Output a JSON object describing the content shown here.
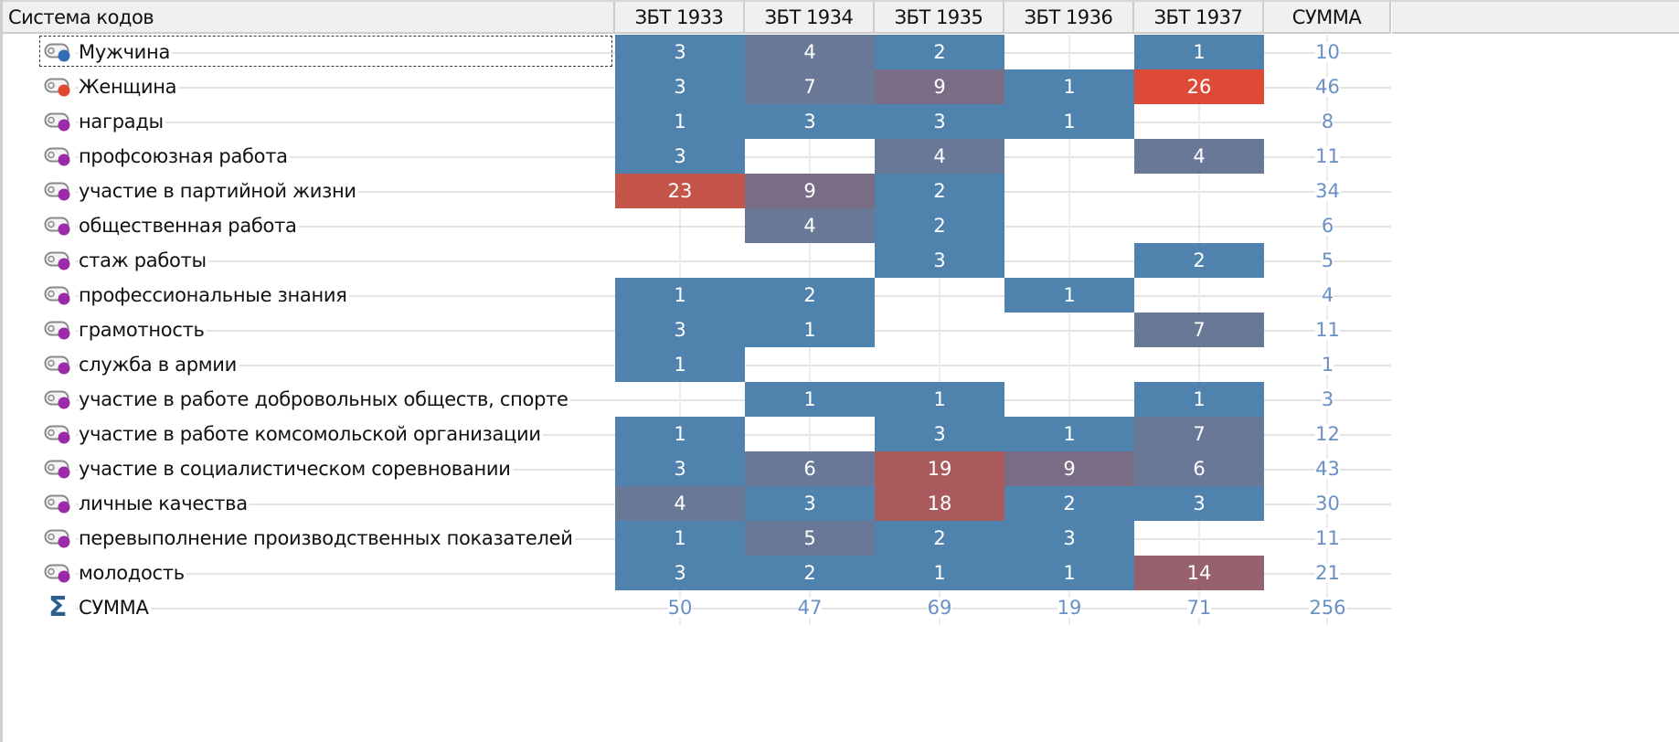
{
  "header": {
    "first_column": "Система кодов",
    "columns": [
      "ЗБТ 1933",
      "ЗБТ 1934",
      "ЗБТ 1935",
      "ЗБТ 1936",
      "ЗБТ 1937"
    ],
    "sum_column": "СУММА"
  },
  "colors": {
    "cell_low": "#4f83ae",
    "cell_mid": "#687896",
    "cell_midhigh": "#7a6c84",
    "cell_high": "#a85a5c",
    "cell_max": "#dd4a35",
    "cell_23": "#c5554a",
    "cell_14": "#96606c",
    "sum_text": "#6a8fc4",
    "code_icon_male": "#2f6db5",
    "code_icon_female": "#e0492f",
    "code_icon_default": "#9b2ba8"
  },
  "rows": [
    {
      "label": "Мужчина",
      "icon": "code-icon",
      "icon_color": "#2f6db5",
      "values": [
        3,
        4,
        2,
        null,
        1
      ],
      "sum": 10,
      "focused": true
    },
    {
      "label": "Женщина",
      "icon": "code-icon",
      "icon_color": "#e0492f",
      "values": [
        3,
        7,
        9,
        1,
        26
      ],
      "sum": 46
    },
    {
      "label": "награды",
      "icon": "code-icon",
      "icon_color": "#9b2ba8",
      "values": [
        1,
        3,
        3,
        1,
        null
      ],
      "sum": 8
    },
    {
      "label": "профсоюзная работа",
      "icon": "code-icon",
      "icon_color": "#9b2ba8",
      "values": [
        3,
        null,
        4,
        null,
        4
      ],
      "sum": 11
    },
    {
      "label": "участие в партийной жизни",
      "icon": "code-icon",
      "icon_color": "#9b2ba8",
      "values": [
        23,
        9,
        2,
        null,
        null
      ],
      "sum": 34
    },
    {
      "label": "общественная работа",
      "icon": "code-icon",
      "icon_color": "#9b2ba8",
      "values": [
        null,
        4,
        2,
        null,
        null
      ],
      "sum": 6
    },
    {
      "label": "стаж работы",
      "icon": "code-icon",
      "icon_color": "#9b2ba8",
      "values": [
        null,
        null,
        3,
        null,
        2
      ],
      "sum": 5
    },
    {
      "label": "профессиональные знания",
      "icon": "code-icon",
      "icon_color": "#9b2ba8",
      "values": [
        1,
        2,
        null,
        1,
        null
      ],
      "sum": 4
    },
    {
      "label": "грамотность",
      "icon": "code-icon",
      "icon_color": "#9b2ba8",
      "values": [
        3,
        1,
        null,
        null,
        7
      ],
      "sum": 11
    },
    {
      "label": "служба в армии",
      "icon": "code-icon",
      "icon_color": "#9b2ba8",
      "values": [
        1,
        null,
        null,
        null,
        null
      ],
      "sum": 1
    },
    {
      "label": "участие в работе добровольных обществ, спорте",
      "icon": "code-icon",
      "icon_color": "#9b2ba8",
      "values": [
        null,
        1,
        1,
        null,
        1
      ],
      "sum": 3
    },
    {
      "label": "участие в работе комсомольской организации",
      "icon": "code-icon",
      "icon_color": "#9b2ba8",
      "values": [
        1,
        null,
        3,
        1,
        7
      ],
      "sum": 12
    },
    {
      "label": "участие в социалистическом соревновании",
      "icon": "code-icon",
      "icon_color": "#9b2ba8",
      "values": [
        3,
        6,
        19,
        9,
        6
      ],
      "sum": 43
    },
    {
      "label": "личные качества",
      "icon": "code-icon",
      "icon_color": "#9b2ba8",
      "values": [
        4,
        3,
        18,
        2,
        3
      ],
      "sum": 30
    },
    {
      "label": "перевыполнение производственных показателей",
      "icon": "code-icon",
      "icon_color": "#9b2ba8",
      "values": [
        1,
        5,
        2,
        3,
        null
      ],
      "sum": 11
    },
    {
      "label": "молодость",
      "icon": "code-icon",
      "icon_color": "#9b2ba8",
      "values": [
        3,
        2,
        1,
        1,
        14
      ],
      "sum": 21
    }
  ],
  "totals": {
    "label": "СУММА",
    "icon": "sigma-icon",
    "values": [
      50,
      47,
      69,
      19,
      71
    ],
    "sum": 256
  },
  "chart_data": {
    "type": "heatmap",
    "title": "",
    "xlabel": "",
    "ylabel": "Система кодов",
    "categories": [
      "ЗБТ 1933",
      "ЗБТ 1934",
      "ЗБТ 1935",
      "ЗБТ 1936",
      "ЗБТ 1937"
    ],
    "rows": [
      "Мужчина",
      "Женщина",
      "награды",
      "профсоюзная работа",
      "участие в партийной жизни",
      "общественная работа",
      "стаж работы",
      "профессиональные знания",
      "грамотность",
      "служба в армии",
      "участие в работе добровольных обществ, спорте",
      "участие в работе комсомольской организации",
      "участие в социалистическом соревновании",
      "личные качества",
      "перевыполнение производственных показателей",
      "молодость"
    ],
    "values": [
      [
        3,
        4,
        2,
        null,
        1
      ],
      [
        3,
        7,
        9,
        1,
        26
      ],
      [
        1,
        3,
        3,
        1,
        null
      ],
      [
        3,
        null,
        4,
        null,
        4
      ],
      [
        23,
        9,
        2,
        null,
        null
      ],
      [
        null,
        4,
        2,
        null,
        null
      ],
      [
        null,
        null,
        3,
        null,
        2
      ],
      [
        1,
        2,
        null,
        1,
        null
      ],
      [
        3,
        1,
        null,
        null,
        7
      ],
      [
        1,
        null,
        null,
        null,
        null
      ],
      [
        null,
        1,
        1,
        null,
        1
      ],
      [
        1,
        null,
        3,
        1,
        7
      ],
      [
        3,
        6,
        19,
        9,
        6
      ],
      [
        4,
        3,
        18,
        2,
        3
      ],
      [
        1,
        5,
        2,
        3,
        null
      ],
      [
        3,
        2,
        1,
        1,
        14
      ]
    ],
    "row_sums": [
      10,
      46,
      8,
      11,
      34,
      6,
      5,
      4,
      11,
      1,
      3,
      12,
      43,
      30,
      11,
      21
    ],
    "column_sums": [
      50,
      47,
      69,
      19,
      71
    ],
    "grand_total": 256,
    "sum_label": "СУММА"
  }
}
